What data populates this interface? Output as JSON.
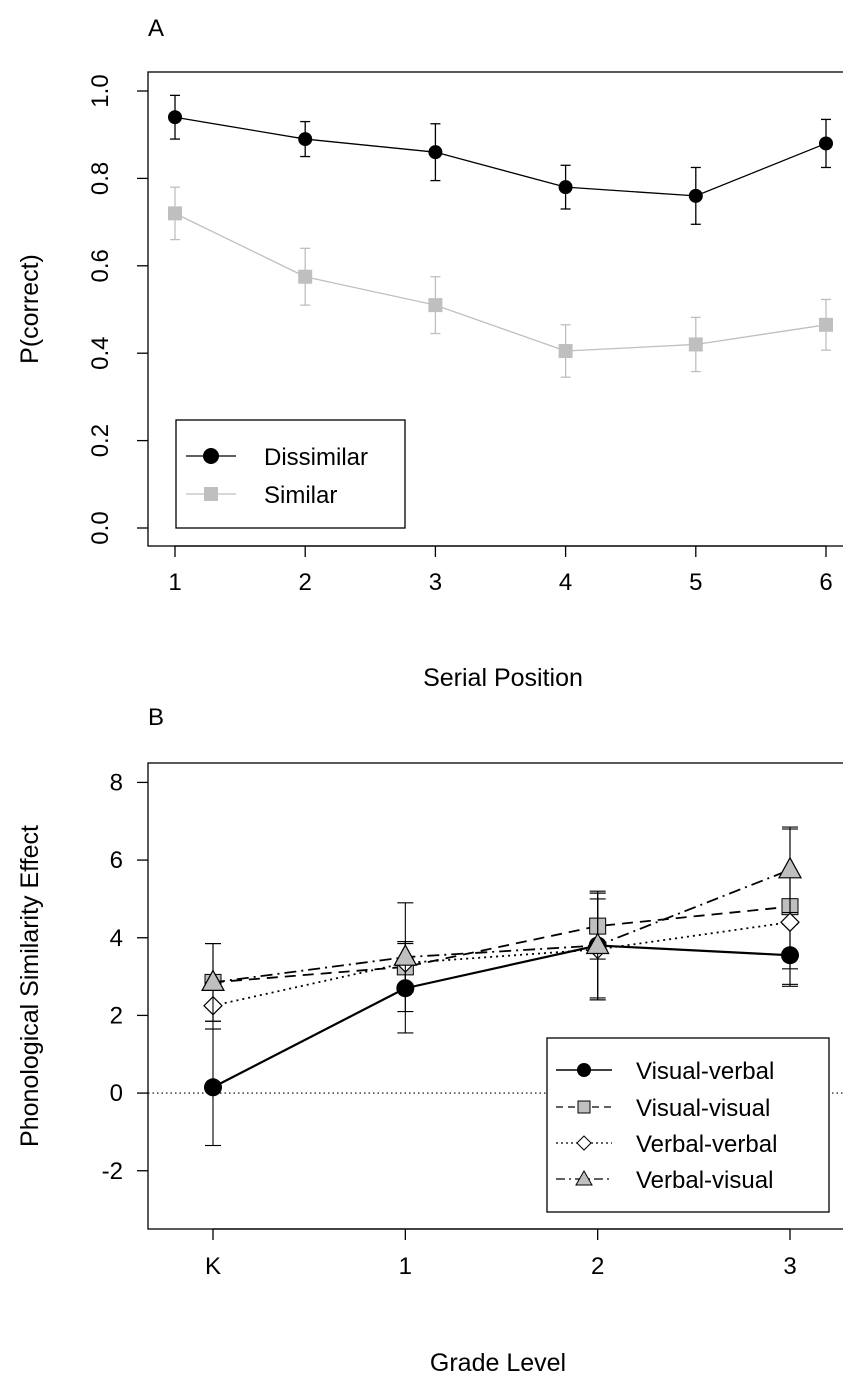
{
  "chart_data": [
    {
      "panel_label": "A",
      "type": "line",
      "xlabel": "Serial Position",
      "ylabel": "P(correct)",
      "x": [
        1,
        2,
        3,
        4,
        5,
        6
      ],
      "xticks": [
        "1",
        "2",
        "3",
        "4",
        "5",
        "6"
      ],
      "xlim": [
        1,
        6
      ],
      "ylim": [
        0,
        1
      ],
      "yticks": [
        "0.0",
        "0.2",
        "0.4",
        "0.6",
        "0.8",
        "1.0"
      ],
      "ytick_values": [
        0,
        0.2,
        0.4,
        0.6,
        0.8,
        1.0
      ],
      "legend_position": "bottom-left",
      "series": [
        {
          "name": "Dissimilar",
          "color": "#000000",
          "marker": "circle",
          "values": [
            0.94,
            0.89,
            0.86,
            0.78,
            0.76,
            0.88
          ],
          "err": [
            0.05,
            0.04,
            0.065,
            0.05,
            0.065,
            0.055
          ]
        },
        {
          "name": "Similar",
          "color": "#bfbfbf",
          "marker": "square",
          "values": [
            0.72,
            0.575,
            0.51,
            0.405,
            0.42,
            0.465
          ],
          "err": [
            0.06,
            0.065,
            0.065,
            0.06,
            0.062,
            0.058
          ]
        }
      ]
    },
    {
      "panel_label": "B",
      "type": "line",
      "xlabel": "Grade Level",
      "ylabel": "Phonological Similarity Effect",
      "categories": [
        "K",
        "1",
        "2",
        "3"
      ],
      "ylim": [
        -3.5,
        8.5
      ],
      "yticks": [
        "-2",
        "0",
        "2",
        "4",
        "6",
        "8"
      ],
      "ytick_values": [
        -2,
        0,
        2,
        4,
        6,
        8
      ],
      "reference_line": 0,
      "legend_position": "bottom-right",
      "series": [
        {
          "name": "Visual-verbal",
          "marker": "circle",
          "line": "solid",
          "values": [
            0.15,
            2.7,
            3.8,
            3.55
          ],
          "err": [
            1.5,
            1.15,
            1.35,
            0.8
          ]
        },
        {
          "name": "Visual-visual",
          "marker": "square",
          "line": "dashed",
          "values": [
            2.85,
            3.25,
            4.3,
            4.8
          ],
          "err": [
            1.0,
            0.65,
            0.85,
            2.0
          ]
        },
        {
          "name": "Verbal-verbal",
          "marker": "diamond",
          "line": "dotted",
          "values": [
            2.25,
            3.35,
            3.7,
            4.4
          ],
          "err": [
            0.6,
            0.55,
            1.3,
            1.2
          ]
        },
        {
          "name": "Verbal-visual",
          "marker": "triangle",
          "line": "dashdot",
          "values": [
            2.85,
            3.5,
            3.8,
            5.75
          ],
          "err": [
            1.0,
            1.4,
            1.4,
            1.1
          ]
        }
      ]
    }
  ]
}
